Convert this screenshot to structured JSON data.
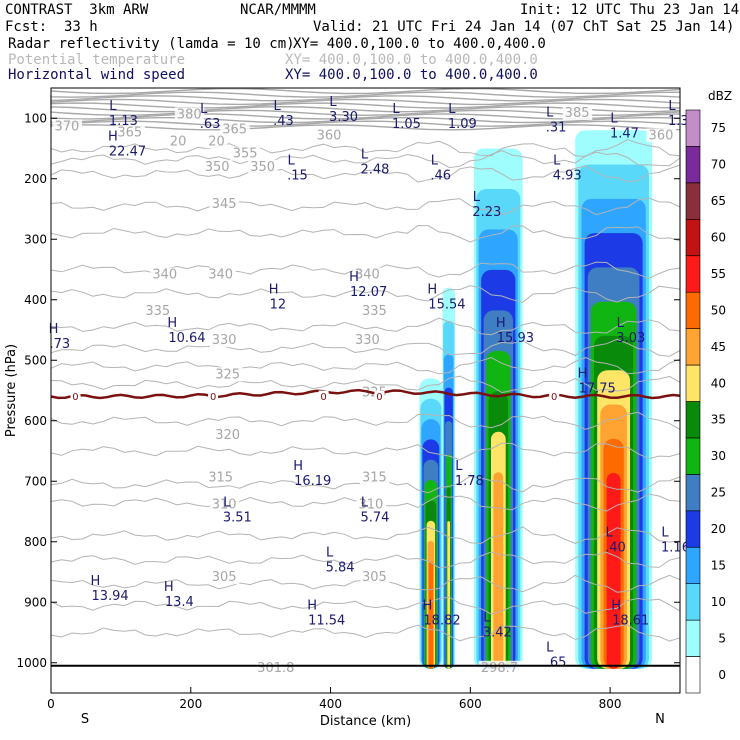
{
  "header": {
    "model": "CONTRAST  3km ARW",
    "org": "NCAR/MMMM",
    "init": "Init: 12 UTC Thu 23 Jan 14",
    "fcst_label": "Fcst:",
    "fcst_value": "33 h",
    "valid": "Valid: 21 UTC Fri 24 Jan 14 (07 ChT Sat 25 Jan 14)",
    "field1": "Radar reflectivity (lamda = 10 cm)",
    "field2": "Potential temperature",
    "field3": "Horizontal wind speed",
    "xy": "XY= 400.0,100.0 to 400.0,400.0"
  },
  "chart_data": {
    "type": "cross-section",
    "xlabel": "Distance (km)",
    "ylabel": "Pressure (hPa)",
    "xlim": [
      0,
      900
    ],
    "ylim": [
      1050,
      50
    ],
    "x_ticks": [
      0,
      200,
      400,
      600,
      800
    ],
    "y_ticks": [
      100,
      200,
      300,
      400,
      500,
      600,
      700,
      800,
      900,
      1000
    ],
    "left_end": "S",
    "right_end": "N",
    "colorbar": {
      "unit": "dBZ",
      "levels": [
        0,
        5,
        10,
        15,
        20,
        25,
        30,
        35,
        40,
        45,
        50,
        55,
        60,
        65,
        70,
        75
      ],
      "colors": [
        "#ffffff",
        "#9ffdfd",
        "#5ad8fa",
        "#2ea6ff",
        "#1c3ae6",
        "#3f7ec2",
        "#11b511",
        "#0a8a0a",
        "#ffe566",
        "#ffa333",
        "#ff6a00",
        "#ff1a1a",
        "#c21212",
        "#8a2e3c",
        "#7a2a9a",
        "#c38ec8"
      ]
    },
    "freezing_level": {
      "label": "0",
      "pressure_hPa": 560,
      "label_x_km": [
        35,
        232,
        390,
        470,
        720
      ]
    },
    "theta_labels": [
      {
        "value": "370",
        "x": 5,
        "p": 120
      },
      {
        "value": "365",
        "x": 95,
        "p": 130
      },
      {
        "value": "380",
        "x": 180,
        "p": 100
      },
      {
        "value": "365",
        "x": 245,
        "p": 125
      },
      {
        "value": "360",
        "x": 380,
        "p": 135
      },
      {
        "value": "385",
        "x": 735,
        "p": 98
      },
      {
        "value": "360",
        "x": 855,
        "p": 135
      },
      {
        "value": "355",
        "x": 260,
        "p": 165
      },
      {
        "value": "350",
        "x": 220,
        "p": 187
      },
      {
        "value": "350",
        "x": 285,
        "p": 187
      },
      {
        "value": "345",
        "x": 230,
        "p": 248
      },
      {
        "value": "340",
        "x": 145,
        "p": 365
      },
      {
        "value": "340",
        "x": 225,
        "p": 365
      },
      {
        "value": "340",
        "x": 435,
        "p": 365
      },
      {
        "value": "335",
        "x": 135,
        "p": 425
      },
      {
        "value": "335",
        "x": 445,
        "p": 425
      },
      {
        "value": "330",
        "x": 230,
        "p": 473
      },
      {
        "value": "330",
        "x": 435,
        "p": 473
      },
      {
        "value": "325",
        "x": 235,
        "p": 530
      },
      {
        "value": "325",
        "x": 445,
        "p": 560
      },
      {
        "value": "320",
        "x": 235,
        "p": 630
      },
      {
        "value": "315",
        "x": 225,
        "p": 700
      },
      {
        "value": "315",
        "x": 445,
        "p": 700
      },
      {
        "value": "310",
        "x": 230,
        "p": 745
      },
      {
        "value": "310",
        "x": 440,
        "p": 745
      },
      {
        "value": "305",
        "x": 230,
        "p": 865
      },
      {
        "value": "305",
        "x": 445,
        "p": 865
      },
      {
        "value": "301.8",
        "x": 295,
        "p": 1015
      },
      {
        "value": "298.7",
        "x": 615,
        "p": 1015
      },
      {
        "value": "20",
        "x": 170,
        "p": 145
      },
      {
        "value": "20",
        "x": 225,
        "p": 145
      }
    ],
    "wind_extrema": [
      {
        "type": "L",
        "value": "1.13",
        "x": 80,
        "p": 90
      },
      {
        "type": "L",
        "value": ".63",
        "x": 210,
        "p": 95
      },
      {
        "type": "L",
        "value": ".43",
        "x": 315,
        "p": 90
      },
      {
        "type": "L",
        "value": "3.30",
        "x": 395,
        "p": 83
      },
      {
        "type": "L",
        "value": "1.05",
        "x": 485,
        "p": 95
      },
      {
        "type": "L",
        "value": "1.09",
        "x": 565,
        "p": 95
      },
      {
        "type": "L",
        "value": ".31",
        "x": 705,
        "p": 100
      },
      {
        "type": "L",
        "value": "1.47",
        "x": 797,
        "p": 110
      },
      {
        "type": "L",
        "value": "1.3",
        "x": 880,
        "p": 90
      },
      {
        "type": "H",
        "value": "22.47",
        "x": 80,
        "p": 140
      },
      {
        "type": "L",
        "value": ".15",
        "x": 335,
        "p": 180
      },
      {
        "type": "L",
        "value": "2.48",
        "x": 440,
        "p": 170
      },
      {
        "type": "L",
        "value": ".46",
        "x": 540,
        "p": 180
      },
      {
        "type": "L",
        "value": "4.93",
        "x": 715,
        "p": 180
      },
      {
        "type": "L",
        "value": "2.23",
        "x": 600,
        "p": 240
      },
      {
        "type": "H",
        "value": "12.07",
        "x": 425,
        "p": 372
      },
      {
        "type": "H",
        "value": "12",
        "x": 310,
        "p": 393
      },
      {
        "type": "H",
        "value": "15.54",
        "x": 537,
        "p": 393
      },
      {
        "type": "H",
        "value": ".73",
        "x": -5,
        "p": 458
      },
      {
        "type": "H",
        "value": "10.64",
        "x": 165,
        "p": 448
      },
      {
        "type": "H",
        "value": "15.93",
        "x": 635,
        "p": 448
      },
      {
        "type": "L",
        "value": "3.03",
        "x": 806,
        "p": 448
      },
      {
        "type": "H",
        "value": "17.75",
        "x": 752,
        "p": 532
      },
      {
        "type": "H",
        "value": "16.19",
        "x": 345,
        "p": 685
      },
      {
        "type": "L",
        "value": "1.78",
        "x": 575,
        "p": 685
      },
      {
        "type": "L",
        "value": "3.51",
        "x": 243,
        "p": 745
      },
      {
        "type": "L",
        "value": "5.74",
        "x": 440,
        "p": 745
      },
      {
        "type": "L",
        "value": ".40",
        "x": 790,
        "p": 795
      },
      {
        "type": "L",
        "value": "1.16",
        "x": 870,
        "p": 795
      },
      {
        "type": "L",
        "value": "5.84",
        "x": 390,
        "p": 828
      },
      {
        "type": "H",
        "value": "13.94",
        "x": 55,
        "p": 875
      },
      {
        "type": "H",
        "value": "13.4",
        "x": 160,
        "p": 885
      },
      {
        "type": "H",
        "value": "11.54",
        "x": 365,
        "p": 915
      },
      {
        "type": "H",
        "value": "18.82",
        "x": 530,
        "p": 915
      },
      {
        "type": "L",
        "value": "3.42",
        "x": 615,
        "p": 935
      },
      {
        "type": "H",
        "value": "18.61",
        "x": 800,
        "p": 915
      },
      {
        "type": "L",
        "value": ".65",
        "x": 705,
        "p": 985
      }
    ],
    "reflectivity_cells": [
      {
        "x0": 527,
        "x1": 560,
        "top_p": 530,
        "max_dbz": 50
      },
      {
        "x0": 560,
        "x1": 578,
        "top_p": 380,
        "max_dbz": 40
      },
      {
        "x0": 605,
        "x1": 675,
        "top_p": 150,
        "max_dbz": 45
      },
      {
        "x0": 750,
        "x1": 860,
        "top_p": 120,
        "max_dbz": 55
      }
    ]
  }
}
